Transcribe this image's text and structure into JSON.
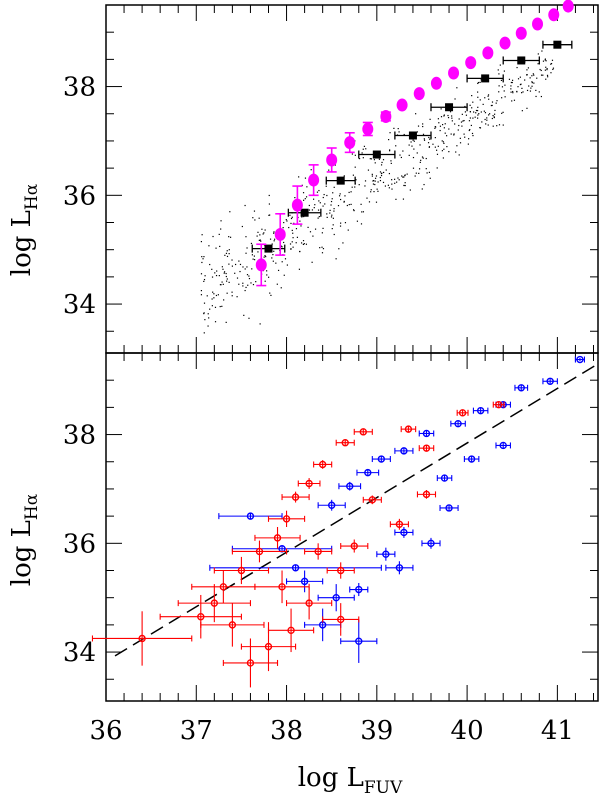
{
  "chart_data": [
    {
      "type": "scatter",
      "panel": "top",
      "xlabel": "",
      "ylabel_main": "log  L",
      "ylabel_sub": "Hα",
      "xlim": [
        36,
        41.45
      ],
      "ylim": [
        33.1,
        39.5
      ],
      "xticks": [
        36,
        37,
        38,
        39,
        40,
        41
      ],
      "yticks": [
        34,
        36,
        38
      ],
      "ytick_labels": [
        "34",
        "36",
        "38"
      ],
      "colors": {
        "dots": "#000000",
        "binned": "#000000",
        "model": "#ff00ff"
      },
      "series": [
        {
          "marker": "square",
          "points": [
            [
              37.8,
              35.02,
              0.18
            ],
            [
              38.2,
              35.68,
              0.18
            ],
            [
              38.6,
              36.27,
              0.16
            ],
            [
              39.0,
              36.75,
              0.2
            ],
            [
              39.4,
              37.1,
              0.2
            ],
            [
              39.8,
              37.62,
              0.2
            ],
            [
              40.2,
              38.15,
              0.2
            ],
            [
              40.6,
              38.48,
              0.2
            ],
            [
              41.0,
              38.77,
              0.16
            ]
          ]
        },
        {
          "marker": "circle",
          "points": [
            [
              37.72,
              34.72,
              0.38
            ],
            [
              37.93,
              35.28,
              0.38
            ],
            [
              38.12,
              35.82,
              0.35
            ],
            [
              38.3,
              36.28,
              0.28
            ],
            [
              38.5,
              36.65,
              0.22
            ],
            [
              38.7,
              36.97,
              0.18
            ],
            [
              38.9,
              37.22,
              0.12
            ],
            [
              39.1,
              37.45,
              0.08
            ],
            [
              39.28,
              37.66,
              0
            ],
            [
              39.47,
              37.87,
              0
            ],
            [
              39.66,
              38.06,
              0
            ],
            [
              39.85,
              38.25,
              0
            ],
            [
              40.04,
              38.44,
              0
            ],
            [
              40.23,
              38.62,
              0
            ],
            [
              40.42,
              38.8,
              0
            ],
            [
              40.6,
              38.98,
              0
            ],
            [
              40.78,
              39.15,
              0
            ],
            [
              40.96,
              39.32,
              0
            ],
            [
              41.12,
              39.48,
              0
            ]
          ]
        }
      ]
    },
    {
      "type": "scatter",
      "panel": "bottom",
      "xlabel_main": "log  L",
      "xlabel_sub": "FUV",
      "ylabel_main": "log  L",
      "ylabel_sub": "Hα",
      "xlim": [
        36,
        41.45
      ],
      "ylim": [
        33.1,
        39.5
      ],
      "xticks": [
        36,
        37,
        38,
        39,
        40,
        41
      ],
      "xtick_labels": [
        "36",
        "37",
        "38",
        "39",
        "40",
        "41"
      ],
      "yticks": [
        34,
        36,
        38
      ],
      "ytick_labels": [
        "34",
        "36",
        "38"
      ],
      "fit_line": [
        [
          36.1,
          33.93
        ],
        [
          41.45,
          39.3
        ]
      ],
      "colors": {
        "blue": "#0000ff",
        "red": "#ff0000",
        "fit": "#000000"
      },
      "series": [
        {
          "color": "blue",
          "points": [
            [
              41.25,
              39.38,
              0.05,
              0.03
            ],
            [
              40.92,
              38.98,
              0.08,
              0.04
            ],
            [
              40.6,
              38.86,
              0.07,
              0.05
            ],
            [
              40.4,
              38.55,
              0.08,
              0.05
            ],
            [
              40.15,
              38.44,
              0.08,
              0.05
            ],
            [
              39.9,
              38.2,
              0.08,
              0.05
            ],
            [
              39.55,
              38.02,
              0.08,
              0.05
            ],
            [
              39.3,
              37.7,
              0.1,
              0.05
            ],
            [
              39.05,
              37.55,
              0.1,
              0.06
            ],
            [
              38.9,
              37.3,
              0.12,
              0.06
            ],
            [
              38.7,
              37.05,
              0.12,
              0.08
            ],
            [
              38.5,
              36.7,
              0.15,
              0.1
            ],
            [
              39.8,
              36.65,
              0.1,
              0.06
            ],
            [
              39.6,
              36.0,
              0.1,
              0.1
            ],
            [
              39.3,
              36.2,
              0.1,
              0.1
            ],
            [
              39.1,
              35.8,
              0.1,
              0.12
            ],
            [
              38.8,
              35.15,
              0.1,
              0.12
            ],
            [
              37.6,
              36.5,
              0.35,
              0.06
            ],
            [
              37.95,
              35.9,
              0.55,
              0.06
            ],
            [
              38.1,
              35.55,
              0.95,
              0.06
            ],
            [
              38.2,
              35.3,
              0.2,
              0.2
            ],
            [
              38.55,
              35.0,
              0.2,
              0.25
            ],
            [
              39.25,
              35.55,
              0.15,
              0.12
            ],
            [
              40.4,
              37.8,
              0.08,
              0.06
            ],
            [
              40.05,
              37.55,
              0.08,
              0.06
            ],
            [
              39.75,
              37.2,
              0.08,
              0.06
            ],
            [
              38.4,
              34.5,
              0.2,
              0.3
            ],
            [
              38.8,
              34.2,
              0.2,
              0.4
            ]
          ]
        },
        {
          "color": "red",
          "points": [
            [
              40.35,
              38.55,
              0.06,
              0.05
            ],
            [
              39.95,
              38.4,
              0.06,
              0.05
            ],
            [
              39.35,
              38.1,
              0.08,
              0.05
            ],
            [
              38.85,
              38.05,
              0.1,
              0.06
            ],
            [
              38.65,
              37.85,
              0.1,
              0.06
            ],
            [
              39.55,
              37.75,
              0.08,
              0.05
            ],
            [
              38.4,
              37.45,
              0.1,
              0.08
            ],
            [
              38.25,
              37.1,
              0.12,
              0.1
            ],
            [
              38.1,
              36.85,
              0.15,
              0.1
            ],
            [
              38.0,
              36.45,
              0.2,
              0.15
            ],
            [
              37.9,
              36.1,
              0.25,
              0.2
            ],
            [
              37.7,
              35.85,
              0.3,
              0.2
            ],
            [
              37.5,
              35.5,
              0.3,
              0.25
            ],
            [
              37.3,
              35.2,
              0.35,
              0.3
            ],
            [
              37.2,
              34.9,
              0.4,
              0.35
            ],
            [
              37.05,
              34.65,
              0.45,
              0.4
            ],
            [
              36.4,
              34.25,
              0.55,
              0.5
            ],
            [
              38.6,
              35.5,
              0.15,
              0.15
            ],
            [
              38.35,
              35.85,
              0.15,
              0.15
            ],
            [
              38.75,
              35.95,
              0.15,
              0.12
            ],
            [
              39.25,
              36.35,
              0.1,
              0.1
            ],
            [
              39.55,
              36.9,
              0.1,
              0.08
            ],
            [
              38.05,
              34.4,
              0.25,
              0.4
            ],
            [
              37.8,
              34.1,
              0.3,
              0.45
            ],
            [
              37.6,
              33.8,
              0.3,
              0.45
            ],
            [
              38.25,
              34.9,
              0.25,
              0.3
            ],
            [
              37.95,
              35.2,
              0.3,
              0.3
            ],
            [
              38.6,
              34.6,
              0.2,
              0.3
            ],
            [
              37.4,
              34.5,
              0.35,
              0.4
            ],
            [
              38.95,
              36.8,
              0.1,
              0.08
            ]
          ]
        }
      ]
    }
  ]
}
